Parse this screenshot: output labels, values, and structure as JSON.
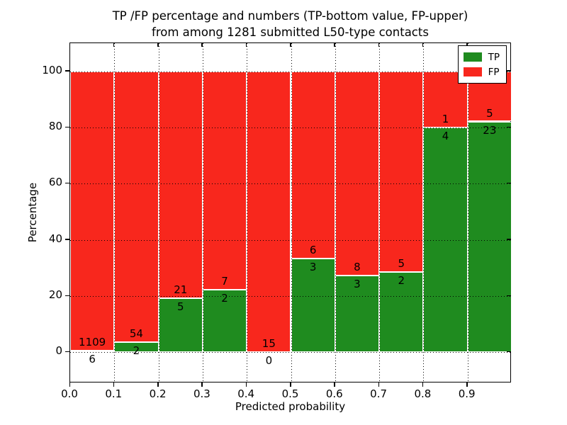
{
  "title": {
    "line1": "TP /FP percentage and numbers (TP-bottom value, FP-upper)",
    "line2": "from among 1281 submitted L50-type contacts"
  },
  "chart_data": {
    "type": "bar",
    "stacked": true,
    "normalized": "each bin stacks to 100%",
    "total_contacts": 1281,
    "categories": [
      "0.0-0.1",
      "0.1-0.2",
      "0.2-0.3",
      "0.3-0.4",
      "0.4-0.5",
      "0.5-0.6",
      "0.6-0.7",
      "0.7-0.8",
      "0.8-0.9",
      "0.9-1.0"
    ],
    "series": [
      {
        "name": "TP",
        "color": "#1f8b1f",
        "counts": [
          6,
          2,
          5,
          2,
          0,
          3,
          3,
          2,
          4,
          23
        ],
        "percent": [
          0.54,
          3.57,
          19.23,
          22.22,
          0.0,
          33.33,
          27.27,
          28.57,
          80.0,
          82.14
        ]
      },
      {
        "name": "FP",
        "color": "#f8271d",
        "counts": [
          1109,
          54,
          21,
          7,
          15,
          6,
          8,
          5,
          1,
          5
        ],
        "percent": [
          99.46,
          96.43,
          80.77,
          77.78,
          100.0,
          66.67,
          72.73,
          71.43,
          20.0,
          17.86
        ]
      }
    ],
    "xlabel": "Predicted probability",
    "ylabel": "Percentage",
    "xticks": [
      "0.0",
      "0.1",
      "0.2",
      "0.3",
      "0.4",
      "0.5",
      "0.6",
      "0.7",
      "0.8",
      "0.9"
    ],
    "yticks": [
      0,
      20,
      40,
      60,
      80,
      100
    ],
    "xlim": [
      0.0,
      1.0
    ],
    "ylim": [
      -11,
      110
    ],
    "grid": "dotted black, on top of bars",
    "bar_edge_color": "#ffffff",
    "legend": {
      "position": "upper right",
      "entries": [
        {
          "label": "TP",
          "color": "#1f8b1f"
        },
        {
          "label": "FP",
          "color": "#f8271d"
        }
      ]
    }
  }
}
